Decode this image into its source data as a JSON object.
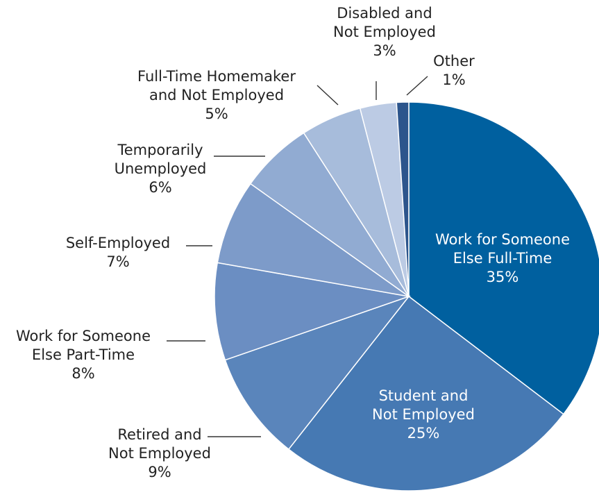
{
  "chart_data": {
    "type": "pie",
    "title": "",
    "slices": [
      {
        "label": "Work for Someone Else Full-Time",
        "label_lines": [
          "Work for Someone",
          "Else Full-Time"
        ],
        "percent_label": "35%",
        "value": 35,
        "color": "#00609f"
      },
      {
        "label": "Student and Not Employed",
        "label_lines": [
          "Student and",
          "Not Employed"
        ],
        "percent_label": "25%",
        "value": 25,
        "color": "#4679b3"
      },
      {
        "label": "Retired and Not Employed",
        "label_lines": [
          "Retired and",
          "Not Employed"
        ],
        "percent_label": "9%",
        "value": 9,
        "color": "#5a85bb"
      },
      {
        "label": "Work for Someone Else Part-Time",
        "label_lines": [
          "Work for Someone",
          "Else Part-Time"
        ],
        "percent_label": "8%",
        "value": 8,
        "color": "#6b8ec2"
      },
      {
        "label": "Self-Employed",
        "label_lines": [
          "Self-Employed"
        ],
        "percent_label": "7%",
        "value": 7,
        "color": "#7d9bc9"
      },
      {
        "label": "Temporarily Unemployed",
        "label_lines": [
          "Temporarily",
          "Unemployed"
        ],
        "percent_label": "6%",
        "value": 6,
        "color": "#91abd2"
      },
      {
        "label": "Full-Time Homemaker and Not Employed",
        "label_lines": [
          "Full-Time Homemaker",
          "and Not Employed"
        ],
        "percent_label": "5%",
        "value": 5,
        "color": "#a7bcdb"
      },
      {
        "label": "Disabled and Not Employed",
        "label_lines": [
          "Disabled and",
          "Not Employed"
        ],
        "percent_label": "3%",
        "value": 3,
        "color": "#bccbe4"
      },
      {
        "label": "Other",
        "label_lines": [
          "Other"
        ],
        "percent_label": "1%",
        "value": 1,
        "color": "#2c558c"
      }
    ]
  }
}
